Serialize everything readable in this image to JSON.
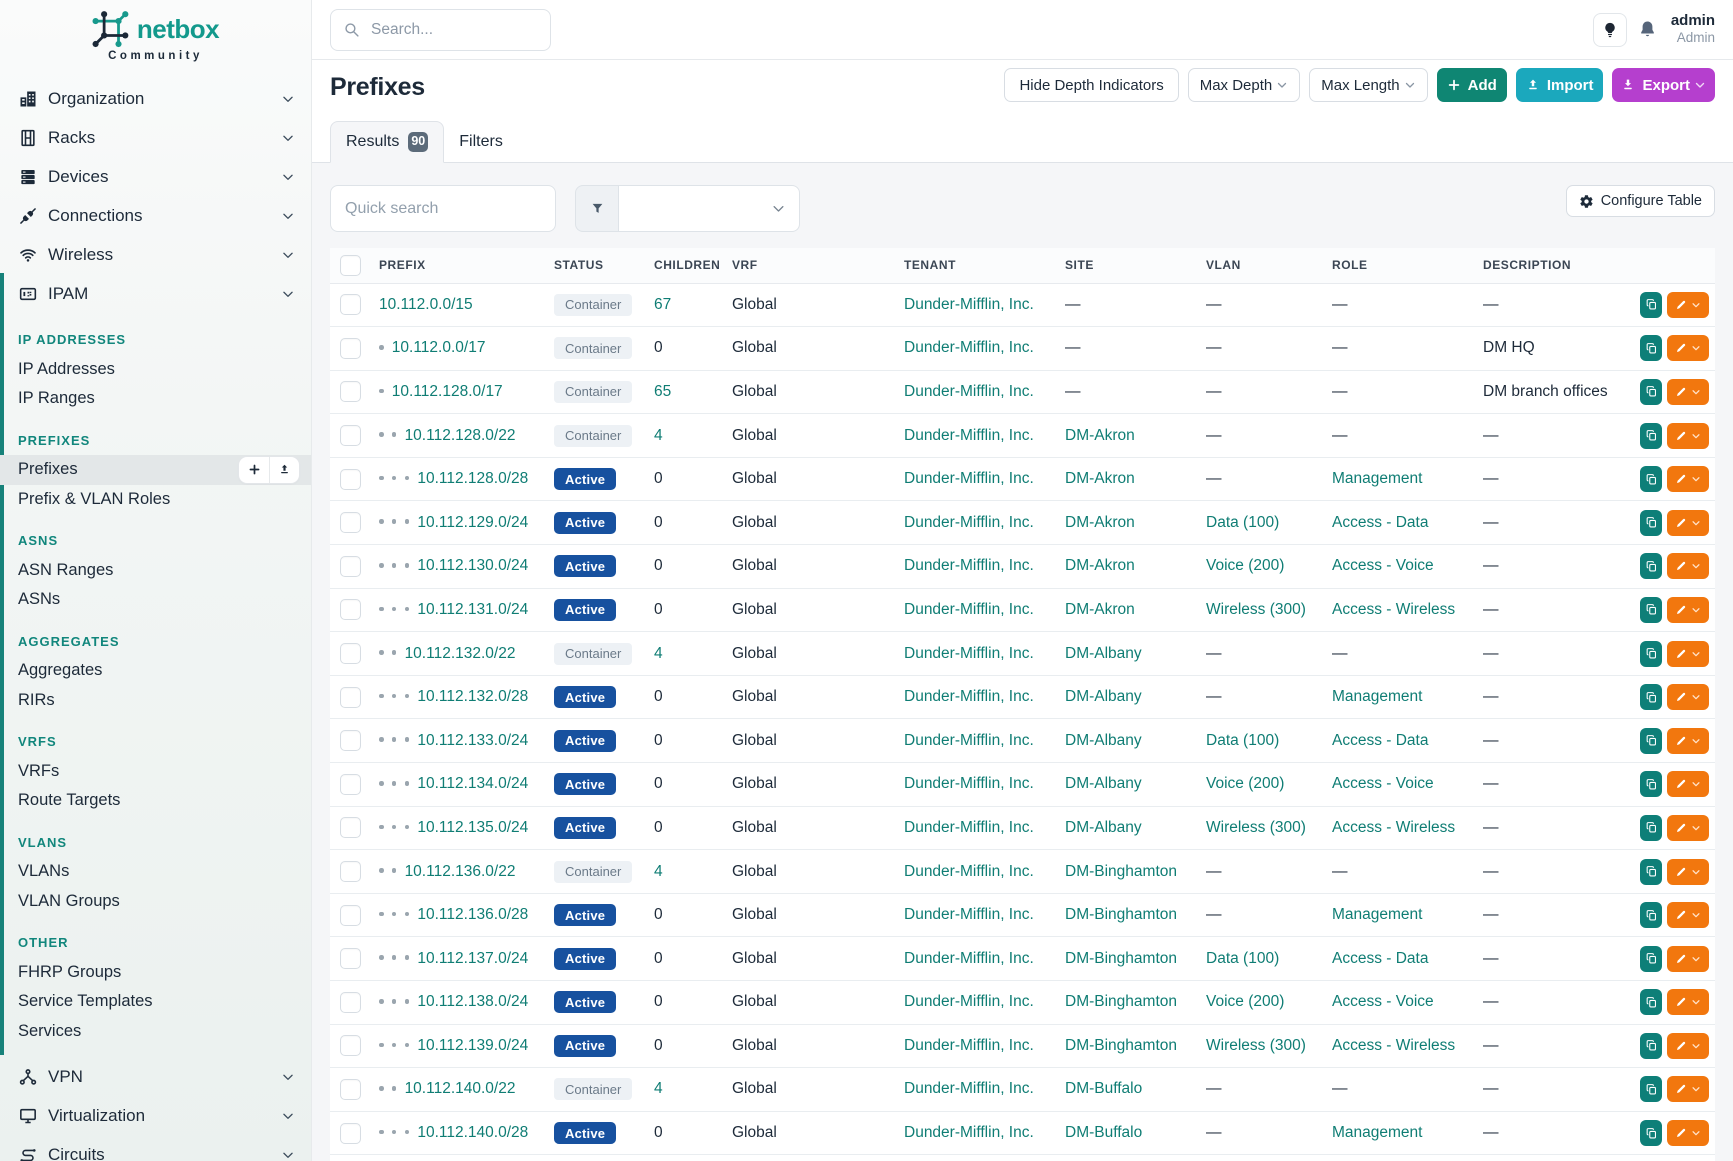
{
  "colors": {
    "navy": "#1d2a39",
    "teal_logo": "#13998c",
    "teal_section": "#11867c",
    "teal_link": "#0f7d74",
    "teal_bar": "#17827a",
    "teal_btn": "#0e7f78",
    "green_add": "#0f8673",
    "cyan_import": "#1ba8bd",
    "purple_export": "#b53fce",
    "orange_edit": "#f2770e",
    "blue_badge": "#17519f",
    "bg_main": "#f5f6f8"
  },
  "brand": {
    "name": "netbox",
    "subtitle": "Community"
  },
  "topbar": {
    "search_placeholder": "Search...",
    "user": {
      "name": "admin",
      "role": "Admin"
    }
  },
  "sidebar": {
    "menu": [
      {
        "label": "Organization",
        "icon": "buildings-icon"
      },
      {
        "label": "Racks",
        "icon": "rack-icon"
      },
      {
        "label": "Devices",
        "icon": "server-icon"
      },
      {
        "label": "Connections",
        "icon": "plug-icon"
      },
      {
        "label": "Wireless",
        "icon": "wifi-icon"
      },
      {
        "label": "IPAM",
        "icon": "ipam-icon"
      }
    ],
    "ipam_sections": [
      {
        "title": "IP ADDRESSES",
        "items": [
          {
            "label": "IP Addresses"
          },
          {
            "label": "IP Ranges"
          }
        ]
      },
      {
        "title": "PREFIXES",
        "items": [
          {
            "label": "Prefixes",
            "active": true,
            "quick_actions": true
          },
          {
            "label": "Prefix & VLAN Roles"
          }
        ]
      },
      {
        "title": "ASNS",
        "items": [
          {
            "label": "ASN Ranges"
          },
          {
            "label": "ASNs"
          }
        ]
      },
      {
        "title": "AGGREGATES",
        "items": [
          {
            "label": "Aggregates"
          },
          {
            "label": "RIRs"
          }
        ]
      },
      {
        "title": "VRFS",
        "items": [
          {
            "label": "VRFs"
          },
          {
            "label": "Route Targets"
          }
        ]
      },
      {
        "title": "VLANS",
        "items": [
          {
            "label": "VLANs"
          },
          {
            "label": "VLAN Groups"
          }
        ]
      },
      {
        "title": "OTHER",
        "items": [
          {
            "label": "FHRP Groups"
          },
          {
            "label": "Service Templates"
          },
          {
            "label": "Services"
          }
        ]
      }
    ],
    "menu_bottom": [
      {
        "label": "VPN",
        "icon": "vpn-icon"
      },
      {
        "label": "Virtualization",
        "icon": "monitor-icon"
      },
      {
        "label": "Circuits",
        "icon": "circuits-icon"
      }
    ]
  },
  "page": {
    "title": "Prefixes",
    "toolbar": {
      "hide_depth": "Hide Depth Indicators",
      "max_depth": "Max Depth",
      "max_length": "Max Length",
      "add": "Add",
      "import": "Import",
      "export": "Export"
    },
    "tabs": {
      "results": "Results",
      "results_count": "90",
      "filters": "Filters"
    },
    "quick_search_placeholder": "Quick search",
    "configure_table": "Configure Table"
  },
  "table": {
    "columns": [
      "PREFIX",
      "STATUS",
      "CHILDREN",
      "VRF",
      "TENANT",
      "SITE",
      "VLAN",
      "ROLE",
      "DESCRIPTION"
    ],
    "rows": [
      {
        "depth": 0,
        "prefix": "10.112.0.0/15",
        "status": "Container",
        "children": "67",
        "vrf": "Global",
        "tenant": "Dunder-Mifflin, Inc.",
        "site": "—",
        "vlan": "—",
        "role": "—",
        "description": "—"
      },
      {
        "depth": 1,
        "prefix": "10.112.0.0/17",
        "status": "Container",
        "children": "0",
        "vrf": "Global",
        "tenant": "Dunder-Mifflin, Inc.",
        "site": "—",
        "vlan": "—",
        "role": "—",
        "description": "DM HQ"
      },
      {
        "depth": 1,
        "prefix": "10.112.128.0/17",
        "status": "Container",
        "children": "65",
        "vrf": "Global",
        "tenant": "Dunder-Mifflin, Inc.",
        "site": "—",
        "vlan": "—",
        "role": "—",
        "description": "DM branch offices"
      },
      {
        "depth": 2,
        "prefix": "10.112.128.0/22",
        "status": "Container",
        "children": "4",
        "vrf": "Global",
        "tenant": "Dunder-Mifflin, Inc.",
        "site": "DM-Akron",
        "vlan": "—",
        "role": "—",
        "description": "—"
      },
      {
        "depth": 3,
        "prefix": "10.112.128.0/28",
        "status": "Active",
        "children": "0",
        "vrf": "Global",
        "tenant": "Dunder-Mifflin, Inc.",
        "site": "DM-Akron",
        "vlan": "—",
        "role": "Management",
        "description": "—"
      },
      {
        "depth": 3,
        "prefix": "10.112.129.0/24",
        "status": "Active",
        "children": "0",
        "vrf": "Global",
        "tenant": "Dunder-Mifflin, Inc.",
        "site": "DM-Akron",
        "vlan": "Data (100)",
        "role": "Access - Data",
        "description": "—"
      },
      {
        "depth": 3,
        "prefix": "10.112.130.0/24",
        "status": "Active",
        "children": "0",
        "vrf": "Global",
        "tenant": "Dunder-Mifflin, Inc.",
        "site": "DM-Akron",
        "vlan": "Voice (200)",
        "role": "Access - Voice",
        "description": "—"
      },
      {
        "depth": 3,
        "prefix": "10.112.131.0/24",
        "status": "Active",
        "children": "0",
        "vrf": "Global",
        "tenant": "Dunder-Mifflin, Inc.",
        "site": "DM-Akron",
        "vlan": "Wireless (300)",
        "role": "Access - Wireless",
        "description": "—"
      },
      {
        "depth": 2,
        "prefix": "10.112.132.0/22",
        "status": "Container",
        "children": "4",
        "vrf": "Global",
        "tenant": "Dunder-Mifflin, Inc.",
        "site": "DM-Albany",
        "vlan": "—",
        "role": "—",
        "description": "—"
      },
      {
        "depth": 3,
        "prefix": "10.112.132.0/28",
        "status": "Active",
        "children": "0",
        "vrf": "Global",
        "tenant": "Dunder-Mifflin, Inc.",
        "site": "DM-Albany",
        "vlan": "—",
        "role": "Management",
        "description": "—"
      },
      {
        "depth": 3,
        "prefix": "10.112.133.0/24",
        "status": "Active",
        "children": "0",
        "vrf": "Global",
        "tenant": "Dunder-Mifflin, Inc.",
        "site": "DM-Albany",
        "vlan": "Data (100)",
        "role": "Access - Data",
        "description": "—"
      },
      {
        "depth": 3,
        "prefix": "10.112.134.0/24",
        "status": "Active",
        "children": "0",
        "vrf": "Global",
        "tenant": "Dunder-Mifflin, Inc.",
        "site": "DM-Albany",
        "vlan": "Voice (200)",
        "role": "Access - Voice",
        "description": "—"
      },
      {
        "depth": 3,
        "prefix": "10.112.135.0/24",
        "status": "Active",
        "children": "0",
        "vrf": "Global",
        "tenant": "Dunder-Mifflin, Inc.",
        "site": "DM-Albany",
        "vlan": "Wireless (300)",
        "role": "Access - Wireless",
        "description": "—"
      },
      {
        "depth": 2,
        "prefix": "10.112.136.0/22",
        "status": "Container",
        "children": "4",
        "vrf": "Global",
        "tenant": "Dunder-Mifflin, Inc.",
        "site": "DM-Binghamton",
        "vlan": "—",
        "role": "—",
        "description": "—"
      },
      {
        "depth": 3,
        "prefix": "10.112.136.0/28",
        "status": "Active",
        "children": "0",
        "vrf": "Global",
        "tenant": "Dunder-Mifflin, Inc.",
        "site": "DM-Binghamton",
        "vlan": "—",
        "role": "Management",
        "description": "—"
      },
      {
        "depth": 3,
        "prefix": "10.112.137.0/24",
        "status": "Active",
        "children": "0",
        "vrf": "Global",
        "tenant": "Dunder-Mifflin, Inc.",
        "site": "DM-Binghamton",
        "vlan": "Data (100)",
        "role": "Access - Data",
        "description": "—"
      },
      {
        "depth": 3,
        "prefix": "10.112.138.0/24",
        "status": "Active",
        "children": "0",
        "vrf": "Global",
        "tenant": "Dunder-Mifflin, Inc.",
        "site": "DM-Binghamton",
        "vlan": "Voice (200)",
        "role": "Access - Voice",
        "description": "—"
      },
      {
        "depth": 3,
        "prefix": "10.112.139.0/24",
        "status": "Active",
        "children": "0",
        "vrf": "Global",
        "tenant": "Dunder-Mifflin, Inc.",
        "site": "DM-Binghamton",
        "vlan": "Wireless (300)",
        "role": "Access - Wireless",
        "description": "—"
      },
      {
        "depth": 2,
        "prefix": "10.112.140.0/22",
        "status": "Container",
        "children": "4",
        "vrf": "Global",
        "tenant": "Dunder-Mifflin, Inc.",
        "site": "DM-Buffalo",
        "vlan": "—",
        "role": "—",
        "description": "—"
      },
      {
        "depth": 3,
        "prefix": "10.112.140.0/28",
        "status": "Active",
        "children": "0",
        "vrf": "Global",
        "tenant": "Dunder-Mifflin, Inc.",
        "site": "DM-Buffalo",
        "vlan": "—",
        "role": "Management",
        "description": "—"
      }
    ]
  }
}
